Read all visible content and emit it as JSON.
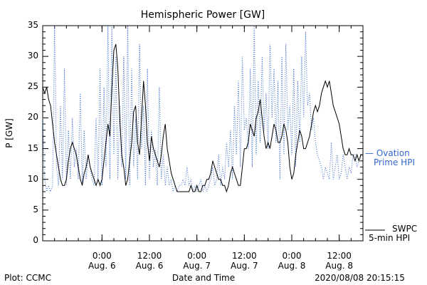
{
  "chart_data": {
    "type": "line",
    "title": "Hemispheric Power [GW]",
    "ylabel": "P [GW]",
    "xlabel": "Date and Time",
    "ylim": [
      0,
      35
    ],
    "yticks": [
      0,
      5,
      10,
      15,
      20,
      25,
      30,
      35
    ],
    "xlim_hours": [
      -15,
      66
    ],
    "xticks": [
      {
        "hours": 0,
        "time": "0:00",
        "date": "Aug. 6"
      },
      {
        "hours": 12,
        "time": "12:00",
        "date": "Aug. 6"
      },
      {
        "hours": 24,
        "time": "0:00",
        "date": "Aug. 7"
      },
      {
        "hours": 36,
        "time": "12:00",
        "date": "Aug. 7"
      },
      {
        "hours": 48,
        "time": "0:00",
        "date": "Aug. 8"
      },
      {
        "hours": 60,
        "time": "12:00",
        "date": "Aug. 8"
      }
    ],
    "series": [
      {
        "name": "SWPC 5-min HPI",
        "legend_lines": [
          "SWPC",
          "5-min HPI"
        ],
        "color": "#000000",
        "style": "solid",
        "x": [
          -15,
          -14.5,
          -14,
          -13.5,
          -13,
          -12.5,
          -12,
          -11.5,
          -11,
          -10.5,
          -10,
          -9.5,
          -9,
          -8.5,
          -8,
          -7.5,
          -7,
          -6.5,
          -6,
          -5.5,
          -5,
          -4.5,
          -4,
          -3.5,
          -3,
          -2.5,
          -2,
          -1.5,
          -1,
          -0.5,
          0,
          0.5,
          1,
          1.5,
          2,
          2.5,
          3,
          3.5,
          4,
          4.5,
          5,
          5.5,
          6,
          6.5,
          7,
          7.5,
          8,
          8.5,
          9,
          9.5,
          10,
          10.5,
          11,
          11.5,
          12,
          12.5,
          13,
          13.5,
          14,
          14.5,
          15,
          15.5,
          16,
          16.5,
          17,
          17.5,
          18,
          18.5,
          19,
          19.5,
          20,
          20.5,
          21,
          21.5,
          22,
          22.5,
          23,
          23.5,
          24,
          24.5,
          25,
          25.5,
          26,
          26.5,
          27,
          27.5,
          28,
          28.5,
          29,
          29.5,
          30,
          30.5,
          31,
          31.5,
          32,
          32.5,
          33,
          33.5,
          34,
          34.5,
          35,
          35.5,
          36,
          36.5,
          37,
          37.5,
          38,
          38.5,
          39,
          39.5,
          40,
          40.5,
          41,
          41.5,
          42,
          42.5,
          43,
          43.5,
          44,
          44.5,
          45,
          45.5,
          46,
          46.5,
          47,
          47.5,
          48,
          48.5,
          49,
          49.5,
          50,
          50.5,
          51,
          51.5,
          52,
          52.5,
          53,
          53.5,
          54,
          54.5,
          55,
          55.5,
          56,
          56.5,
          57,
          57.5,
          58,
          58.5,
          59,
          59.5,
          60,
          60.5,
          61,
          61.5,
          62,
          62.5,
          63,
          63.5,
          64,
          64.5,
          65,
          65.5,
          66
        ],
        "y": [
          25,
          24,
          25,
          23,
          22,
          19,
          16,
          14,
          12,
          10,
          9,
          9,
          10,
          13,
          15,
          16,
          15,
          14,
          12,
          10,
          9,
          11,
          12,
          14,
          12,
          11,
          10,
          9,
          10,
          9,
          10,
          13,
          16,
          19,
          17,
          25,
          31,
          32,
          28,
          20,
          14,
          12,
          9,
          10,
          13,
          16,
          21,
          22,
          16,
          14,
          20,
          26,
          22,
          16,
          13,
          17,
          15,
          14,
          13,
          12,
          14,
          17,
          19,
          15,
          13,
          11,
          10,
          9,
          8,
          8,
          8,
          8,
          8,
          8,
          8,
          9,
          8,
          8,
          9,
          8,
          8,
          9,
          9,
          10,
          10,
          11,
          13,
          12,
          11,
          10,
          10,
          9,
          9,
          8,
          9,
          11,
          12,
          11,
          10,
          9,
          9,
          12,
          15,
          15,
          16,
          19,
          18,
          17,
          20,
          21,
          23,
          20,
          17,
          15,
          16,
          15,
          17,
          19,
          18,
          16,
          16,
          17,
          19,
          18,
          16,
          12,
          10,
          11,
          14,
          16,
          18,
          17,
          15,
          15,
          16,
          17,
          19,
          21,
          22,
          21,
          22,
          24,
          25,
          26,
          25,
          26,
          24,
          22,
          21,
          20,
          19,
          17,
          15,
          14,
          14,
          15,
          14,
          14,
          13,
          14,
          13,
          14,
          14
        ]
      },
      {
        "name": "Ovation Prime HPI",
        "legend_lines": [
          "— Ovation",
          "Prime HPI"
        ],
        "color": "#3366cc",
        "style": "dotted",
        "x": [
          -15,
          -14.5,
          -14,
          -13.5,
          -13,
          -12.5,
          -12,
          -11.5,
          -11,
          -10.5,
          -10,
          -9.5,
          -9,
          -8.5,
          -8,
          -7.5,
          -7,
          -6.5,
          -6,
          -5.5,
          -5,
          -4.5,
          -4,
          -3.5,
          -3,
          -2.5,
          -2,
          -1.5,
          -1,
          -0.5,
          0,
          0.5,
          1,
          1.5,
          2,
          2.5,
          3,
          3.5,
          4,
          4.5,
          5,
          5.5,
          6,
          6.5,
          7,
          7.5,
          8,
          8.5,
          9,
          9.5,
          10,
          10.5,
          11,
          11.5,
          12,
          12.5,
          13,
          13.5,
          14,
          14.5,
          15,
          15.5,
          16,
          16.5,
          17,
          17.5,
          18,
          18.5,
          19,
          19.5,
          20,
          20.5,
          21,
          21.5,
          22,
          22.5,
          23,
          23.5,
          24,
          24.5,
          25,
          25.5,
          26,
          26.5,
          27,
          27.5,
          28,
          28.5,
          29,
          29.5,
          30,
          30.5,
          31,
          31.5,
          32,
          32.5,
          33,
          33.5,
          34,
          34.5,
          35,
          35.5,
          36,
          36.5,
          37,
          37.5,
          38,
          38.5,
          39,
          39.5,
          40,
          40.5,
          41,
          41.5,
          42,
          42.5,
          43,
          43.5,
          44,
          44.5,
          45,
          45.5,
          46,
          46.5,
          47,
          47.5,
          48,
          48.5,
          49,
          49.5,
          50,
          50.5,
          51,
          51.5,
          52,
          52.5,
          53,
          53.5,
          54,
          54.5,
          55,
          55.5,
          56,
          56.5,
          57,
          57.5,
          58,
          58.5,
          59,
          59.5,
          60,
          60.5,
          61,
          61.5,
          62,
          62.5,
          63,
          63.5,
          64,
          64.5,
          65,
          65.5,
          66
        ],
        "y": [
          20,
          10,
          8,
          9,
          8,
          9,
          35,
          12,
          9,
          22,
          10,
          28,
          9,
          18,
          10,
          20,
          12,
          15,
          10,
          24,
          9,
          18,
          10,
          14,
          12,
          10,
          9,
          20,
          10,
          28,
          9,
          25,
          12,
          35,
          10,
          35,
          14,
          30,
          10,
          22,
          12,
          30,
          10,
          35,
          9,
          28,
          12,
          20,
          10,
          32,
          15,
          22,
          9,
          28,
          10,
          18,
          12,
          15,
          9,
          25,
          10,
          14,
          9,
          12,
          9,
          10,
          8,
          9,
          8,
          9,
          9,
          10,
          9,
          12,
          9,
          10,
          8,
          9,
          8,
          9,
          10,
          8,
          9,
          8,
          9,
          10,
          12,
          9,
          10,
          14,
          9,
          12,
          10,
          16,
          12,
          18,
          10,
          22,
          14,
          26,
          12,
          30,
          18,
          20,
          15,
          28,
          12,
          35,
          14,
          26,
          16,
          30,
          18,
          24,
          15,
          32,
          20,
          28,
          16,
          26,
          10,
          30,
          14,
          32,
          18,
          22,
          14,
          28,
          12,
          26,
          16,
          30,
          20,
          34,
          22,
          24,
          18,
          20,
          16,
          14,
          13,
          12,
          10,
          12,
          11,
          10,
          16,
          10,
          12,
          14,
          10,
          11,
          14,
          12,
          10,
          12,
          11,
          14,
          14,
          12,
          13,
          14,
          14
        ]
      }
    ],
    "footer_left": "Plot: CCMC",
    "footer_right": "2020/08/08 20:15:15",
    "grid": false,
    "legend_placement": "right"
  },
  "colors": {
    "black": "#000000",
    "ovation": "#3366cc"
  }
}
